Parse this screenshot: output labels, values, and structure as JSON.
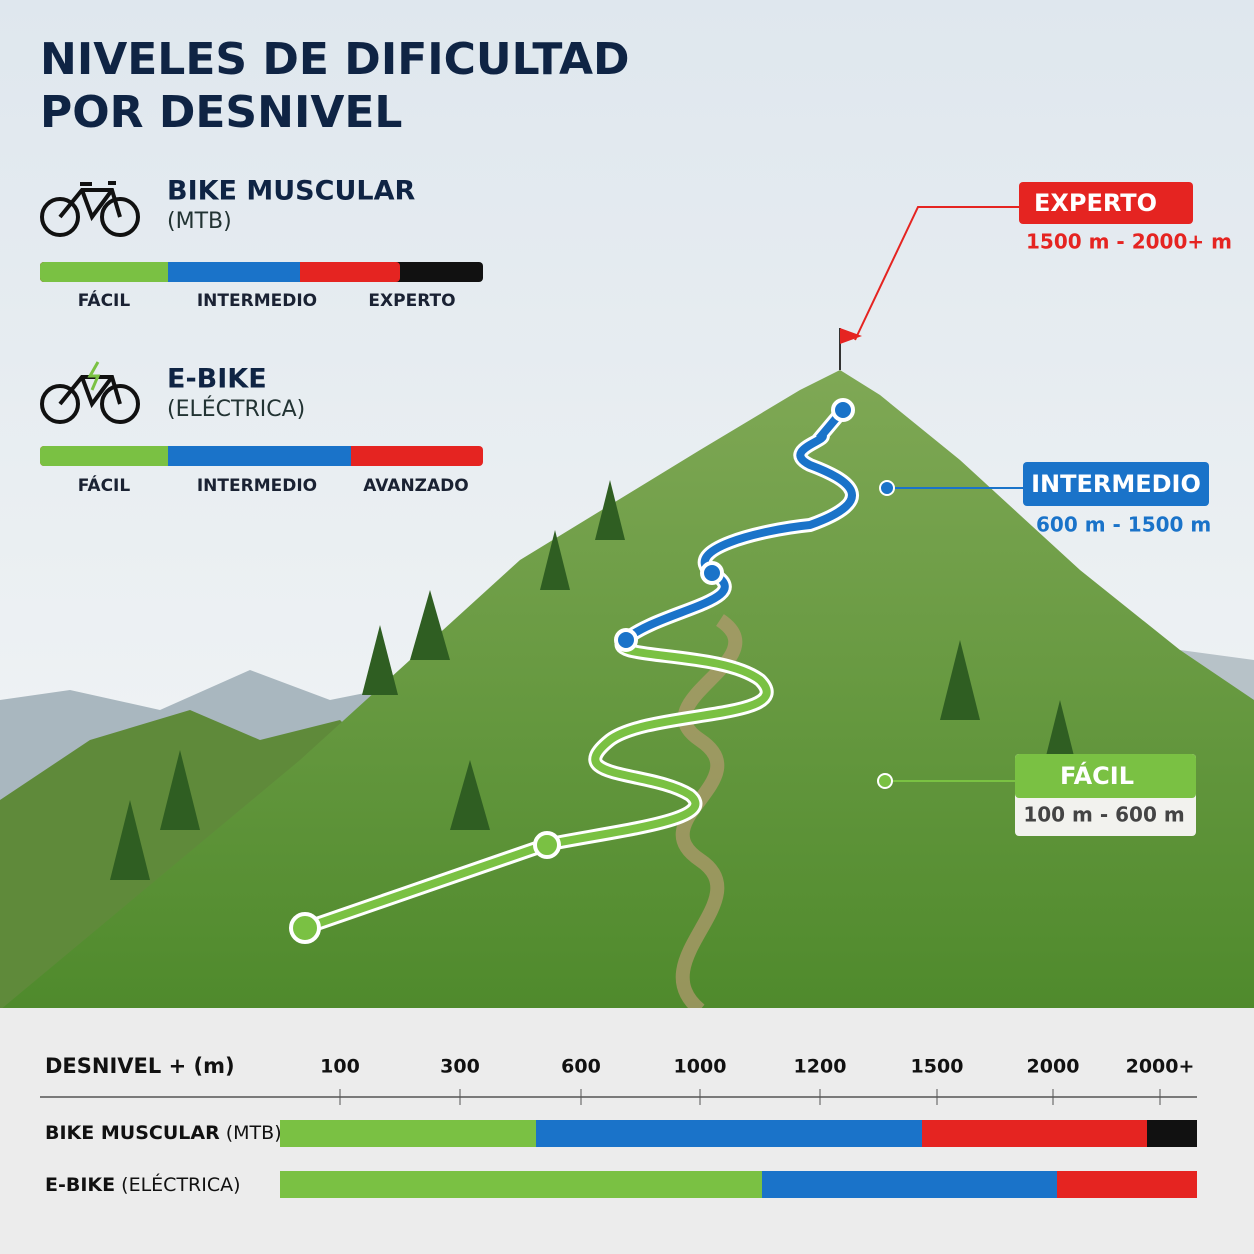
{
  "header": {
    "title_lines": [
      "NIVELES DE DIFICULTAD",
      "POR DESNIVEL"
    ]
  },
  "legend": [
    {
      "name": "BIKE MUSCULAR",
      "sub": "(MTB)",
      "levels": [
        "FÁCIL",
        "INTERMEDIO",
        "EXPERTO"
      ]
    },
    {
      "name": "E-BIKE",
      "sub": "(ELÉCTRICA)",
      "levels": [
        "FÁCIL",
        "INTERMEDIO",
        "AVANZADO"
      ]
    }
  ],
  "callouts": [
    {
      "label": "EXPERTO",
      "range": "1500 m - 2000+ m"
    },
    {
      "label": "INTERMEDIO",
      "range": "600 m - 1500 m"
    },
    {
      "label": "FÁCIL",
      "range": "100 m - 600 m"
    }
  ],
  "scale": {
    "axis_label": "DESNIVEL + (m)",
    "ticks": [
      "100",
      "300",
      "600",
      "1000",
      "1200",
      "1500",
      "2000",
      "2000+"
    ],
    "rows": [
      {
        "name": "BIKE MUSCULAR",
        "sub": "(MTB)"
      },
      {
        "name": "E-BIKE",
        "sub": "(ELÉCTRICA)"
      }
    ]
  }
}
